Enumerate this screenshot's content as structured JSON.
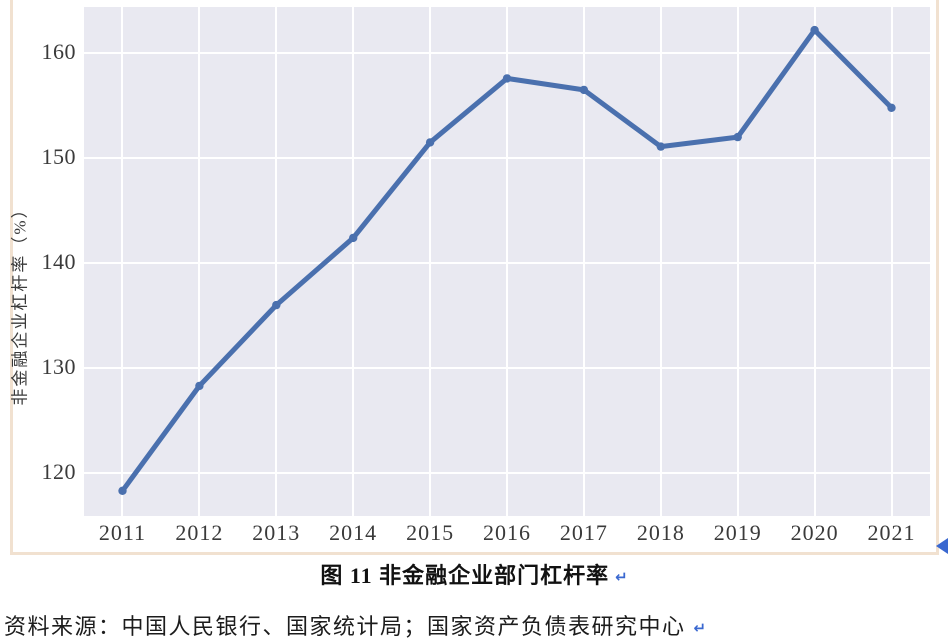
{
  "document": {
    "caption": "图 11 非金融企业部门杠杆率",
    "source_line": "资料来源：中国人民银行、国家统计局；国家资产负债表研究中心",
    "paragraph_mark": "↵",
    "frame_color": "#f1e1d0",
    "mark_color": "#3a68d0"
  },
  "chart_data": {
    "type": "line",
    "title": "",
    "xlabel": "",
    "ylabel": "非金融企业杠杆率（%）",
    "x": [
      "2011",
      "2012",
      "2013",
      "2014",
      "2015",
      "2016",
      "2017",
      "2018",
      "2019",
      "2020",
      "2021"
    ],
    "values": [
      118.3,
      128.3,
      136.0,
      142.4,
      151.5,
      157.6,
      156.5,
      151.1,
      152.0,
      162.2,
      154.8
    ],
    "yticks": [
      120,
      130,
      140,
      150,
      160
    ],
    "ylim": [
      115.9,
      164.4
    ],
    "grid": true,
    "legend_position": "none",
    "line_color": "#4a70ae",
    "marker": "circle",
    "plot_bg_color": "#e9e9f1",
    "grid_color": "#ffffff",
    "tick_color": "#3a3a3a"
  }
}
